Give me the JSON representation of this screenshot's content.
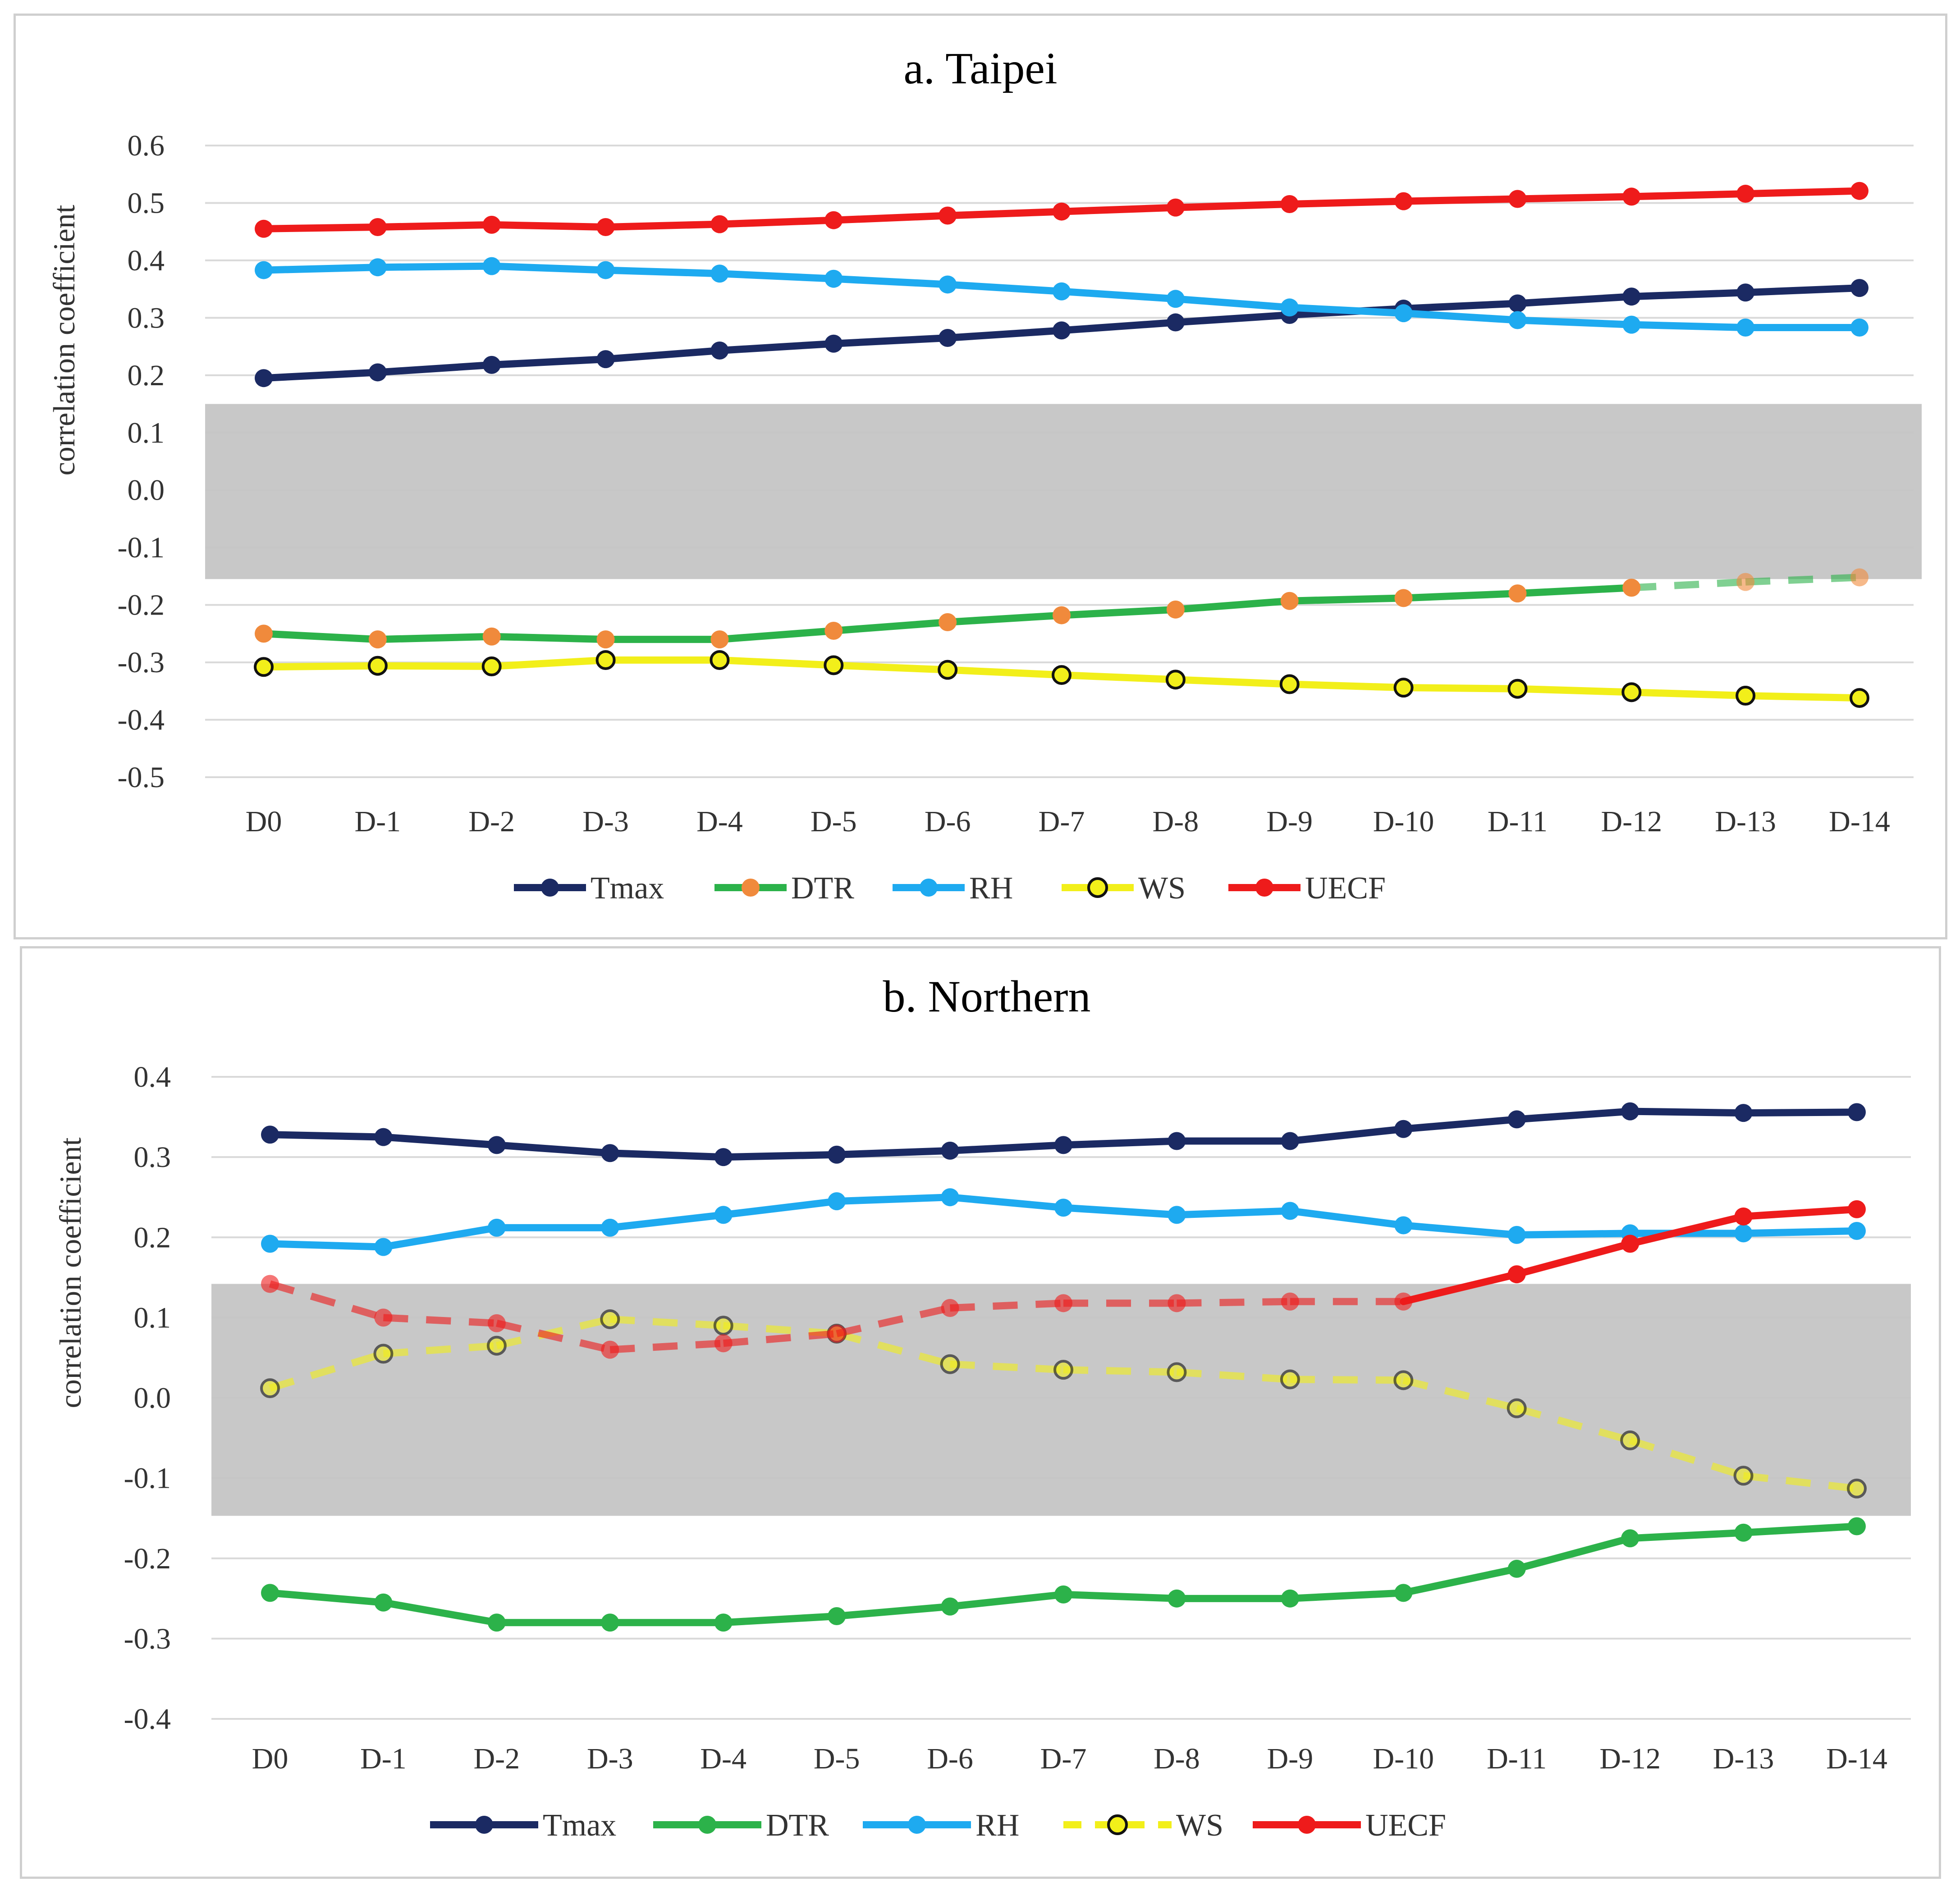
{
  "chart_data": [
    {
      "type": "line",
      "title": "a. Taipei",
      "ylabel": "correlation coefficient",
      "xlabel": "",
      "ylim": [
        -0.5,
        0.6
      ],
      "yticks": [
        "0.6",
        "0.5",
        "0.4",
        "0.3",
        "0.2",
        "0.1",
        "0.0",
        "-0.1",
        "-0.2",
        "-0.3",
        "-0.4",
        "-0.5"
      ],
      "categories": [
        "D0",
        "D-1",
        "D-2",
        "D-3",
        "D-4",
        "D-5",
        "D-6",
        "D-7",
        "D-8",
        "D-9",
        "D-10",
        "D-11",
        "D-12",
        "D-13",
        "D-14"
      ],
      "nonsignificant_band": [
        -0.155,
        0.15
      ],
      "series": [
        {
          "name": "Tmax",
          "color": "#1b2a63",
          "marker_color": "#1b2a63",
          "values": [
            0.195,
            0.205,
            0.218,
            0.228,
            0.243,
            0.255,
            0.265,
            0.278,
            0.292,
            0.305,
            0.316,
            0.325,
            0.337,
            0.344,
            0.352
          ],
          "dashed_from": null
        },
        {
          "name": "DTR",
          "color": "#2cb24a",
          "marker_color": "#f08a3c",
          "values": [
            -0.25,
            -0.26,
            -0.255,
            -0.26,
            -0.26,
            -0.245,
            -0.23,
            -0.218,
            -0.208,
            -0.193,
            -0.188,
            -0.18,
            -0.17,
            -0.16,
            -0.152
          ],
          "dashed_from": 12
        },
        {
          "name": "RH",
          "color": "#1eaaf0",
          "marker_color": "#1eaaf0",
          "values": [
            0.383,
            0.388,
            0.39,
            0.383,
            0.377,
            0.368,
            0.358,
            0.346,
            0.333,
            0.318,
            0.308,
            0.296,
            0.288,
            0.283,
            0.283
          ],
          "dashed_from": null
        },
        {
          "name": "WS",
          "color": "#f2ef1a",
          "marker_color": "#f2ef1a",
          "values": [
            -0.308,
            -0.306,
            -0.307,
            -0.296,
            -0.296,
            -0.305,
            -0.313,
            -0.322,
            -0.33,
            -0.338,
            -0.344,
            -0.346,
            -0.352,
            -0.358,
            -0.362
          ],
          "dashed_from": null,
          "hollow": true
        },
        {
          "name": "UECF",
          "color": "#ee1b1b",
          "marker_color": "#ee1b1b",
          "values": [
            0.455,
            0.458,
            0.462,
            0.458,
            0.463,
            0.47,
            0.478,
            0.485,
            0.492,
            0.498,
            0.503,
            0.507,
            0.511,
            0.516,
            0.521
          ],
          "dashed_from": null
        }
      ]
    },
    {
      "type": "line",
      "title": "b. Northern",
      "ylabel": "correlation coefficient",
      "xlabel": "",
      "ylim": [
        -0.4,
        0.4
      ],
      "yticks": [
        "0.4",
        "0.3",
        "0.2",
        "0.1",
        "0.0",
        "-0.1",
        "-0.2",
        "-0.3",
        "-0.4"
      ],
      "categories": [
        "D0",
        "D-1",
        "D-2",
        "D-3",
        "D-4",
        "D-5",
        "D-6",
        "D-7",
        "D-8",
        "D-9",
        "D-10",
        "D-11",
        "D-12",
        "D-13",
        "D-14"
      ],
      "nonsignificant_band": [
        -0.147,
        0.142
      ],
      "series": [
        {
          "name": "Tmax",
          "color": "#1b2a63",
          "marker_color": "#1b2a63",
          "values": [
            0.328,
            0.325,
            0.315,
            0.305,
            0.3,
            0.303,
            0.308,
            0.315,
            0.32,
            0.32,
            0.335,
            0.347,
            0.357,
            0.355,
            0.356
          ],
          "dashed_from": null
        },
        {
          "name": "DTR",
          "color": "#2cb24a",
          "marker_color": "#2cb24a",
          "values": [
            -0.243,
            -0.255,
            -0.28,
            -0.28,
            -0.28,
            -0.272,
            -0.26,
            -0.245,
            -0.25,
            -0.25,
            -0.243,
            -0.213,
            -0.175,
            -0.168,
            -0.16
          ],
          "dashed_from": null
        },
        {
          "name": "RH",
          "color": "#1eaaf0",
          "marker_color": "#1eaaf0",
          "values": [
            0.192,
            0.188,
            0.212,
            0.212,
            0.228,
            0.245,
            0.25,
            0.237,
            0.228,
            0.233,
            0.215,
            0.203,
            0.205,
            0.205,
            0.208
          ],
          "dashed_from": null
        },
        {
          "name": "WS",
          "color": "#f2ef1a",
          "marker_color": "#f2ef1a",
          "values": [
            0.012,
            0.055,
            0.065,
            0.098,
            0.09,
            0.08,
            0.042,
            0.035,
            0.032,
            0.023,
            0.022,
            -0.013,
            -0.053,
            -0.097,
            -0.113
          ],
          "dashed_from": 0,
          "hollow": true
        },
        {
          "name": "UECF",
          "color": "#ee1b1b",
          "marker_color": "#ee1b1b",
          "values": [
            0.142,
            0.1,
            0.093,
            0.06,
            0.068,
            0.08,
            0.112,
            0.118,
            0.118,
            0.12,
            0.12,
            0.154,
            0.192,
            0.226,
            0.235
          ],
          "dashed_until": 10
        }
      ]
    }
  ]
}
